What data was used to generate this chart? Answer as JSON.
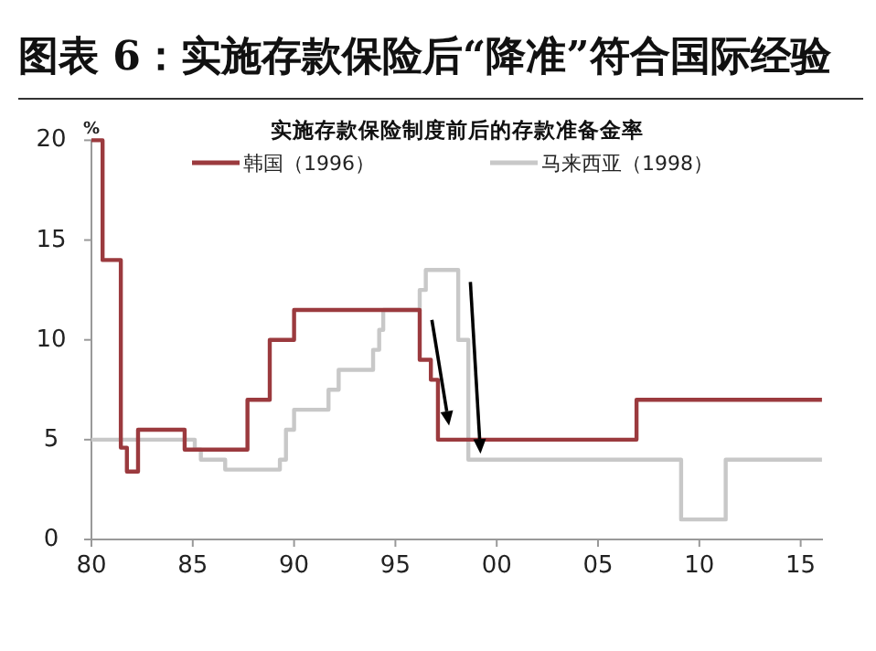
{
  "chart_data": {
    "type": "step",
    "title": "图表 6：实施存款保险后“降准”符合国际经验",
    "subtitle": "实施存款保险制度前后的存款准备金率",
    "ylabel": "%",
    "series": [
      {
        "name": "韩国（1996）",
        "color": "#9b3a3e",
        "x": [
          1980,
          1980.55,
          1981.45,
          1981.75,
          1982.3,
          1984.6,
          1987.7,
          1988.8,
          1990,
          1996.2,
          1996.75,
          1997.1,
          2006.9,
          2016.05
        ],
        "values": [
          20,
          14,
          4.6,
          3.4,
          5.5,
          4.5,
          7,
          10,
          11.5,
          9,
          8,
          5,
          7,
          7
        ]
      },
      {
        "name": "马来西亚（1998）",
        "color": "#c8c8c8",
        "x": [
          1980,
          1985.1,
          1985.4,
          1986.6,
          1989.3,
          1989.6,
          1990,
          1991.7,
          1992.2,
          1993.9,
          1994.2,
          1994.4,
          1996.2,
          1996.5,
          1998.1,
          1998.6,
          2009.1,
          2011.3,
          2016.05
        ],
        "values": [
          5,
          4.5,
          4,
          3.5,
          4,
          5.5,
          6.5,
          7.5,
          8.5,
          9.5,
          10.5,
          11.5,
          12.5,
          13.5,
          10,
          4,
          1,
          4,
          4
        ]
      }
    ],
    "xlim": [
      1980,
      2016.1
    ],
    "xticks": [
      {
        "value": 1980,
        "label": "80"
      },
      {
        "value": 1985,
        "label": "85"
      },
      {
        "value": 1990,
        "label": "90"
      },
      {
        "value": 1995,
        "label": "95"
      },
      {
        "value": 2000,
        "label": "00"
      },
      {
        "value": 2005,
        "label": "05"
      },
      {
        "value": 2010,
        "label": "10"
      },
      {
        "value": 2015,
        "label": "15"
      }
    ],
    "ylim": [
      0,
      20
    ],
    "yticks": [
      0,
      5,
      10,
      15,
      20
    ],
    "legend": "top",
    "grid": false,
    "marker": "none",
    "line_style": "solid"
  }
}
